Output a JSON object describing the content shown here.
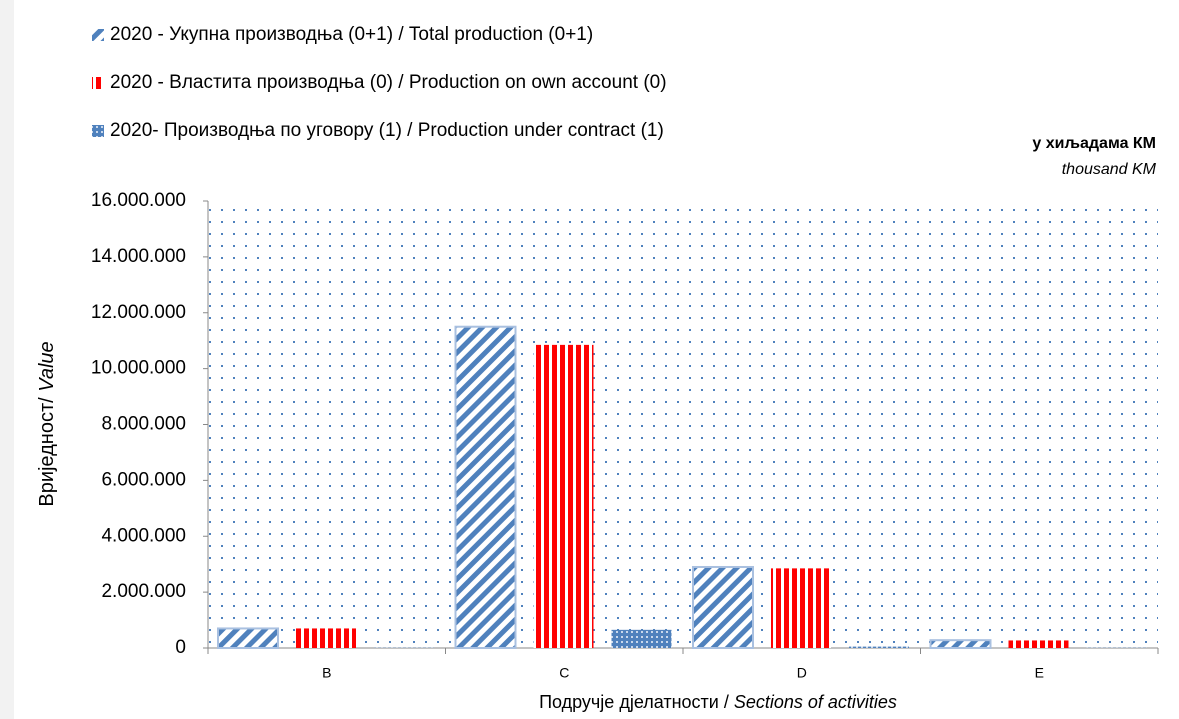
{
  "chart_data": {
    "type": "bar",
    "units": {
      "line1": "у хиљадама КМ",
      "line2": "thousand KM"
    },
    "y_label": {
      "main": "Вриједност/ ",
      "italic": "Value"
    },
    "x_label": {
      "main": "Подручје дјелатности / ",
      "italic": "Sections of activities"
    },
    "categories": [
      "B",
      "C",
      "D",
      "E"
    ],
    "series": [
      {
        "name": "2020 - Укупна производња (0+1) / Total production (0+1)",
        "color": "#4f81bd",
        "pattern": "diagonal",
        "values": [
          700000,
          11500000,
          2900000,
          280000
        ]
      },
      {
        "name": "2020 - Властита производња (0) / Production on own account (0)",
        "color": "#ff0000",
        "pattern": "vertical",
        "values": [
          700000,
          10850000,
          2850000,
          270000
        ]
      },
      {
        "name": "2020- Производња по уговору (1) / Production under contract (1)",
        "color": "#4f81bd",
        "pattern": "dots",
        "values": [
          10000,
          650000,
          50000,
          10000
        ]
      }
    ],
    "ylim": [
      0,
      16000000
    ],
    "yticks": [
      0,
      {
        "value": 2000000,
        "label": "2.000.000"
      },
      {
        "value": 4000000,
        "label": "4.000.000"
      },
      {
        "value": 6000000,
        "label": "6.000.000"
      },
      {
        "value": 8000000,
        "label": "8.000.000"
      },
      {
        "value": 10000000,
        "label": "10.000.000"
      },
      {
        "value": 12000000,
        "label": "12.000.000"
      },
      {
        "value": 14000000,
        "label": "14.000.000"
      },
      {
        "value": 16000000,
        "label": "16.000.000"
      }
    ],
    "grid": false
  }
}
